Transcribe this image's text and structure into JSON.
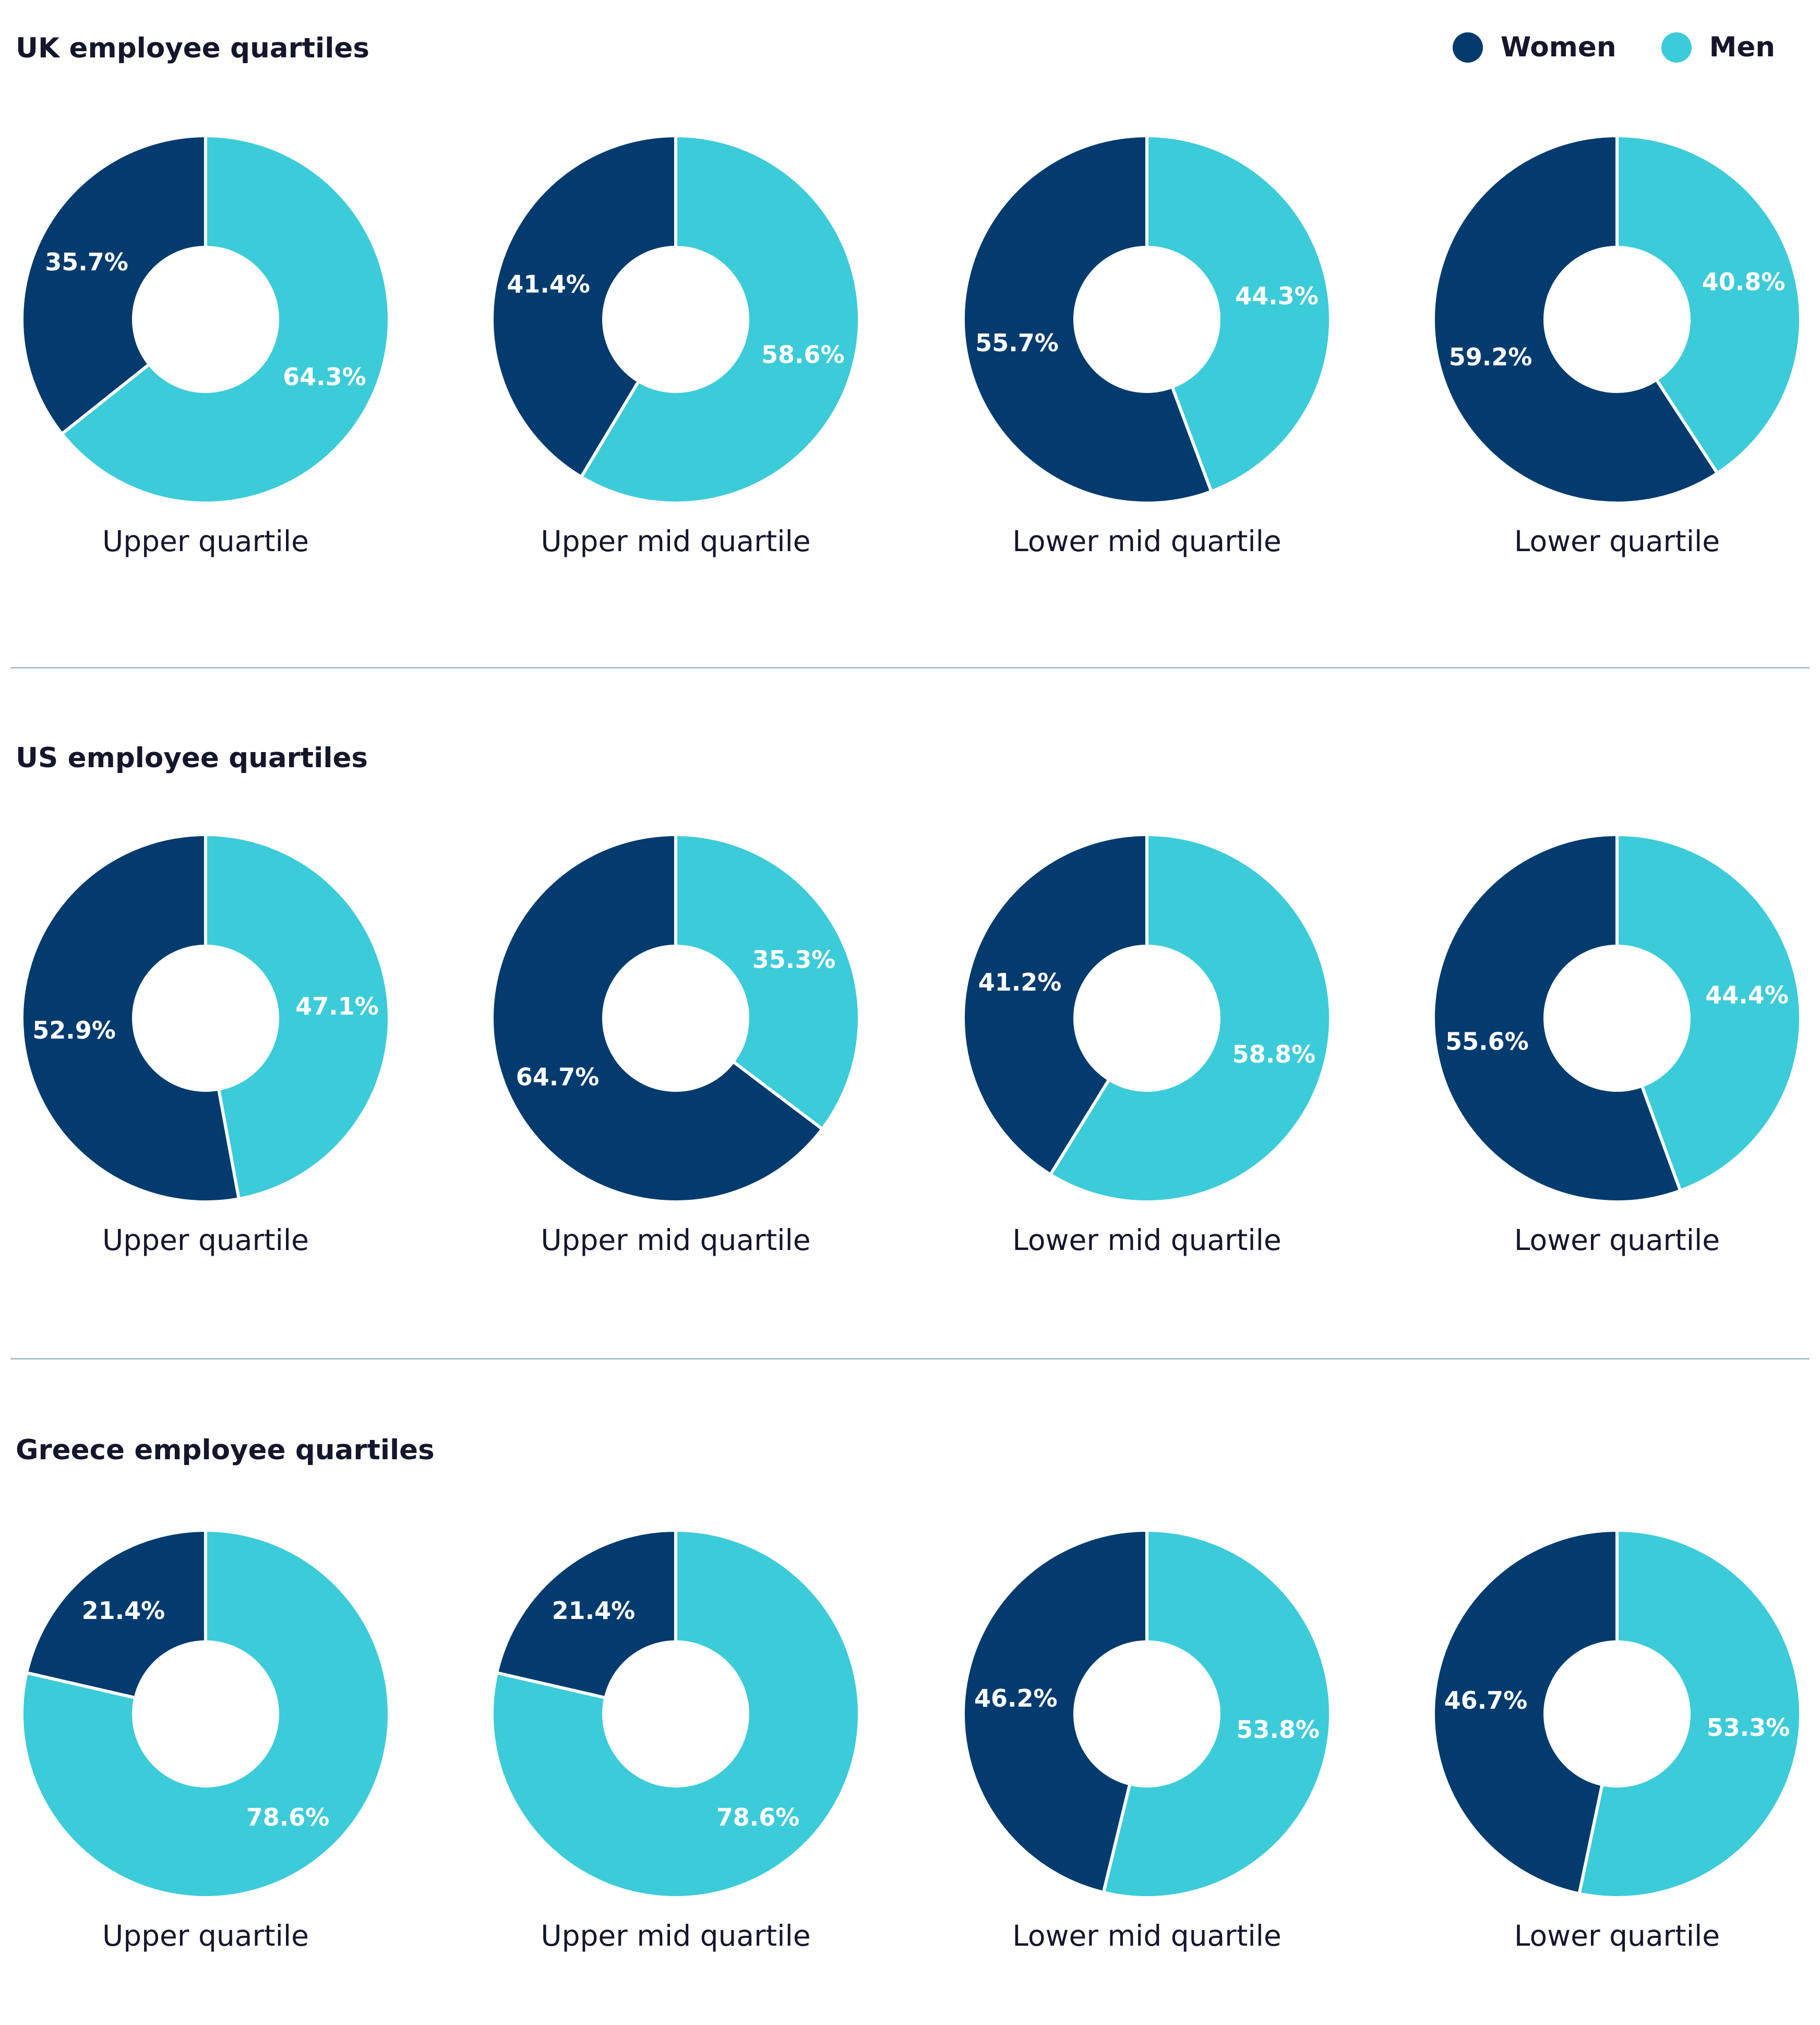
{
  "legend": {
    "women_label": "Women",
    "men_label": "Men"
  },
  "colors": {
    "women": "#033b6f",
    "men": "#3ccbd9"
  },
  "chart_data": [
    {
      "type": "pie",
      "title": "UK employee quartiles",
      "categories": [
        "Upper quartile",
        "Upper mid quartile",
        "Lower mid quartile",
        "Lower quartile"
      ],
      "series": [
        {
          "name": "Women",
          "values": [
            35.7,
            41.4,
            55.7,
            59.2
          ],
          "labels": [
            "35.7%",
            "41.4%",
            "55.7%",
            "59.2%"
          ]
        },
        {
          "name": "Men",
          "values": [
            64.3,
            58.6,
            44.3,
            40.8
          ],
          "labels": [
            "64.3%",
            "58.6%",
            "44.3%",
            "40.8%"
          ]
        }
      ]
    },
    {
      "type": "pie",
      "title": "US employee quartiles",
      "categories": [
        "Upper quartile",
        "Upper mid quartile",
        "Lower mid quartile",
        "Lower quartile"
      ],
      "series": [
        {
          "name": "Women",
          "values": [
            52.9,
            64.7,
            41.2,
            55.6
          ],
          "labels": [
            "52.9%",
            "64.7%",
            "41.2%",
            "55.6%"
          ]
        },
        {
          "name": "Men",
          "values": [
            47.1,
            35.3,
            58.8,
            44.4
          ],
          "labels": [
            "47.1%",
            "35.3%",
            "58.8%",
            "44.4%"
          ]
        }
      ]
    },
    {
      "type": "pie",
      "title": "Greece employee quartiles",
      "categories": [
        "Upper quartile",
        "Upper mid quartile",
        "Lower mid quartile",
        "Lower quartile"
      ],
      "series": [
        {
          "name": "Women",
          "values": [
            21.4,
            21.4,
            46.2,
            46.7
          ],
          "labels": [
            "21.4%",
            "21.4%",
            "46.2%",
            "46.7%"
          ]
        },
        {
          "name": "Men",
          "values": [
            78.6,
            78.6,
            53.8,
            53.3
          ],
          "labels": [
            "78.6%",
            "78.6%",
            "53.8%",
            "53.3%"
          ]
        }
      ]
    }
  ]
}
